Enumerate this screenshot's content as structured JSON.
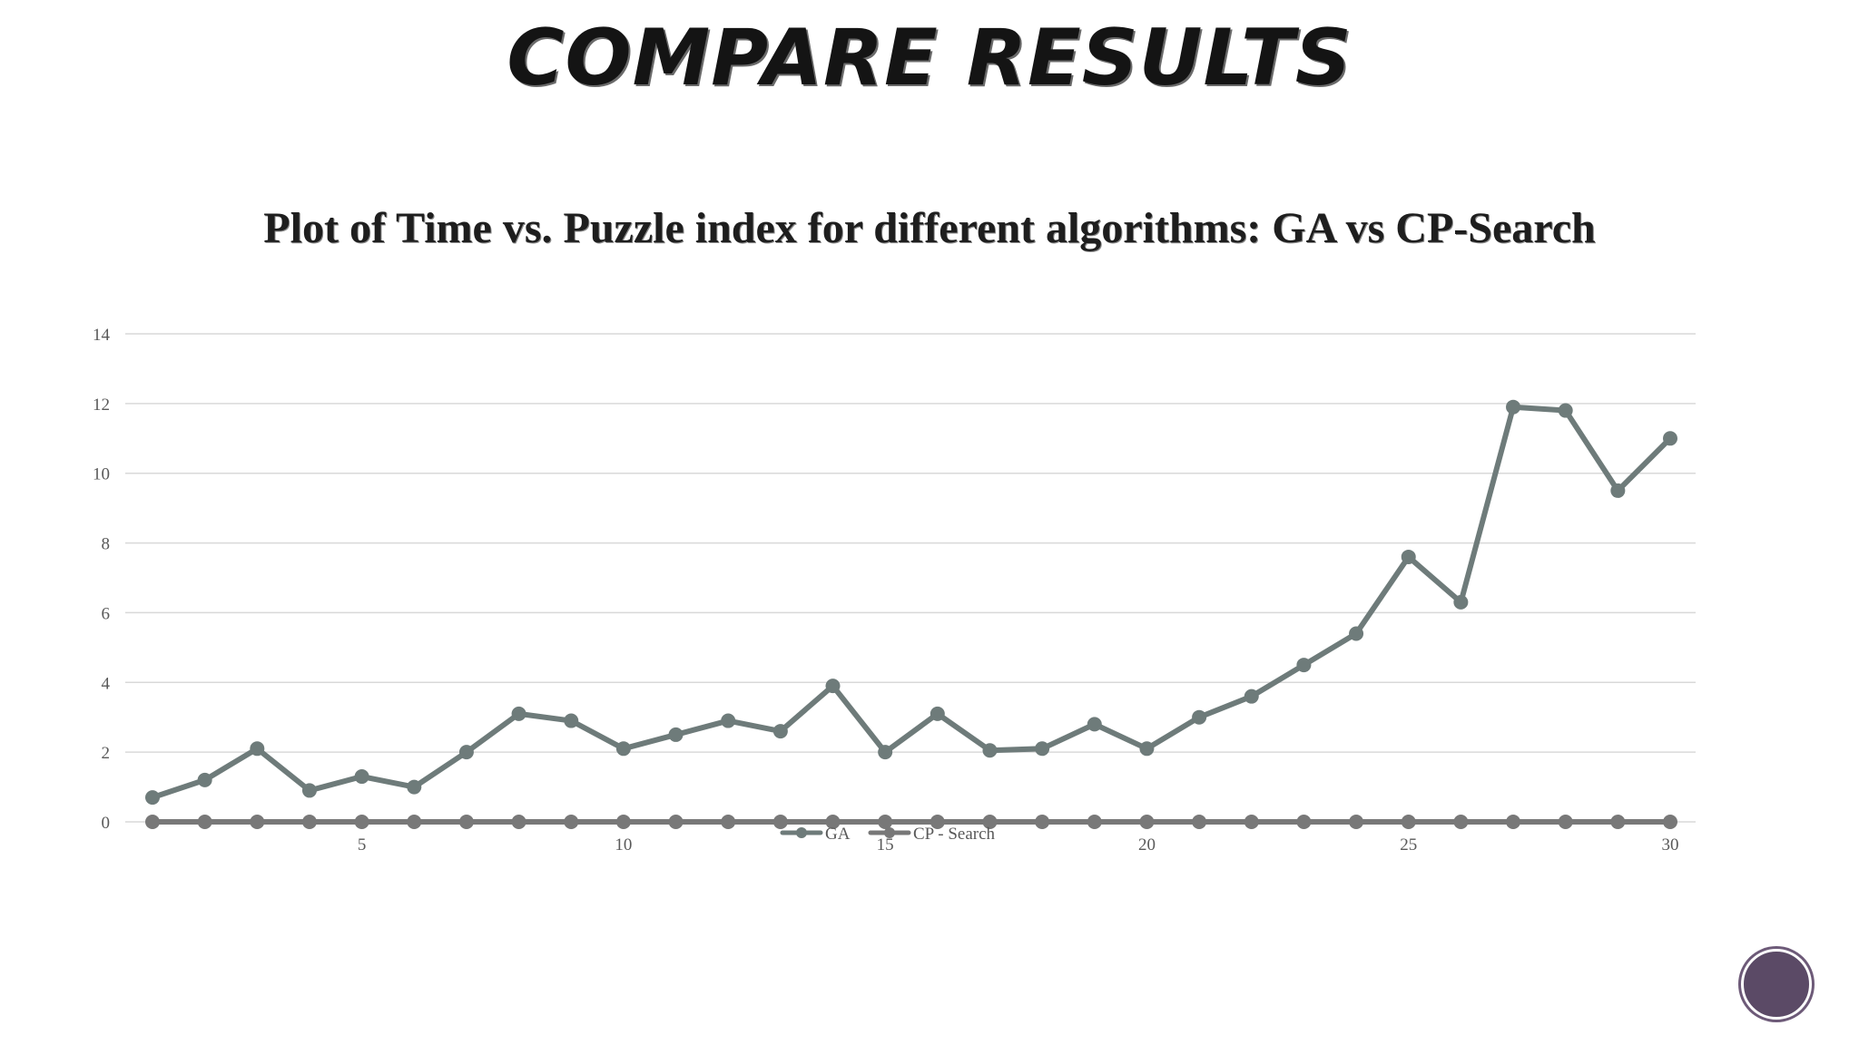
{
  "slide": {
    "title": "COMPARE RESULTS"
  },
  "chart_data": {
    "type": "line",
    "title": "Plot of Time vs. Puzzle index for different algorithms: GA vs CP-Search",
    "xlabel": "",
    "ylabel": "",
    "x": [
      1,
      2,
      3,
      4,
      5,
      6,
      7,
      8,
      9,
      10,
      11,
      12,
      13,
      14,
      15,
      16,
      17,
      18,
      19,
      20,
      21,
      22,
      23,
      24,
      25,
      26,
      27,
      28,
      29,
      30
    ],
    "x_ticks": [
      5,
      10,
      15,
      20,
      25,
      30
    ],
    "ylim": [
      0,
      14
    ],
    "y_ticks": [
      0,
      2,
      4,
      6,
      8,
      10,
      12,
      14
    ],
    "grid": true,
    "legend_placement": "bottom",
    "series": [
      {
        "name": "GA",
        "color": "#6e7b7a",
        "values": [
          0.7,
          1.2,
          2.1,
          0.9,
          1.3,
          1.0,
          2.0,
          3.1,
          2.9,
          2.1,
          2.5,
          2.9,
          2.6,
          3.9,
          2.0,
          3.1,
          2.05,
          2.1,
          2.8,
          2.1,
          3.0,
          3.6,
          4.5,
          5.4,
          7.6,
          6.3,
          11.9,
          11.8,
          9.5,
          11.0
        ]
      },
      {
        "name": "CP - Search",
        "color": "#787878",
        "values": [
          0,
          0,
          0,
          0,
          0,
          0,
          0,
          0,
          0,
          0,
          0,
          0,
          0,
          0,
          0,
          0,
          0,
          0,
          0,
          0,
          0,
          0,
          0,
          0,
          0,
          0,
          0,
          0,
          0,
          0
        ]
      }
    ]
  }
}
